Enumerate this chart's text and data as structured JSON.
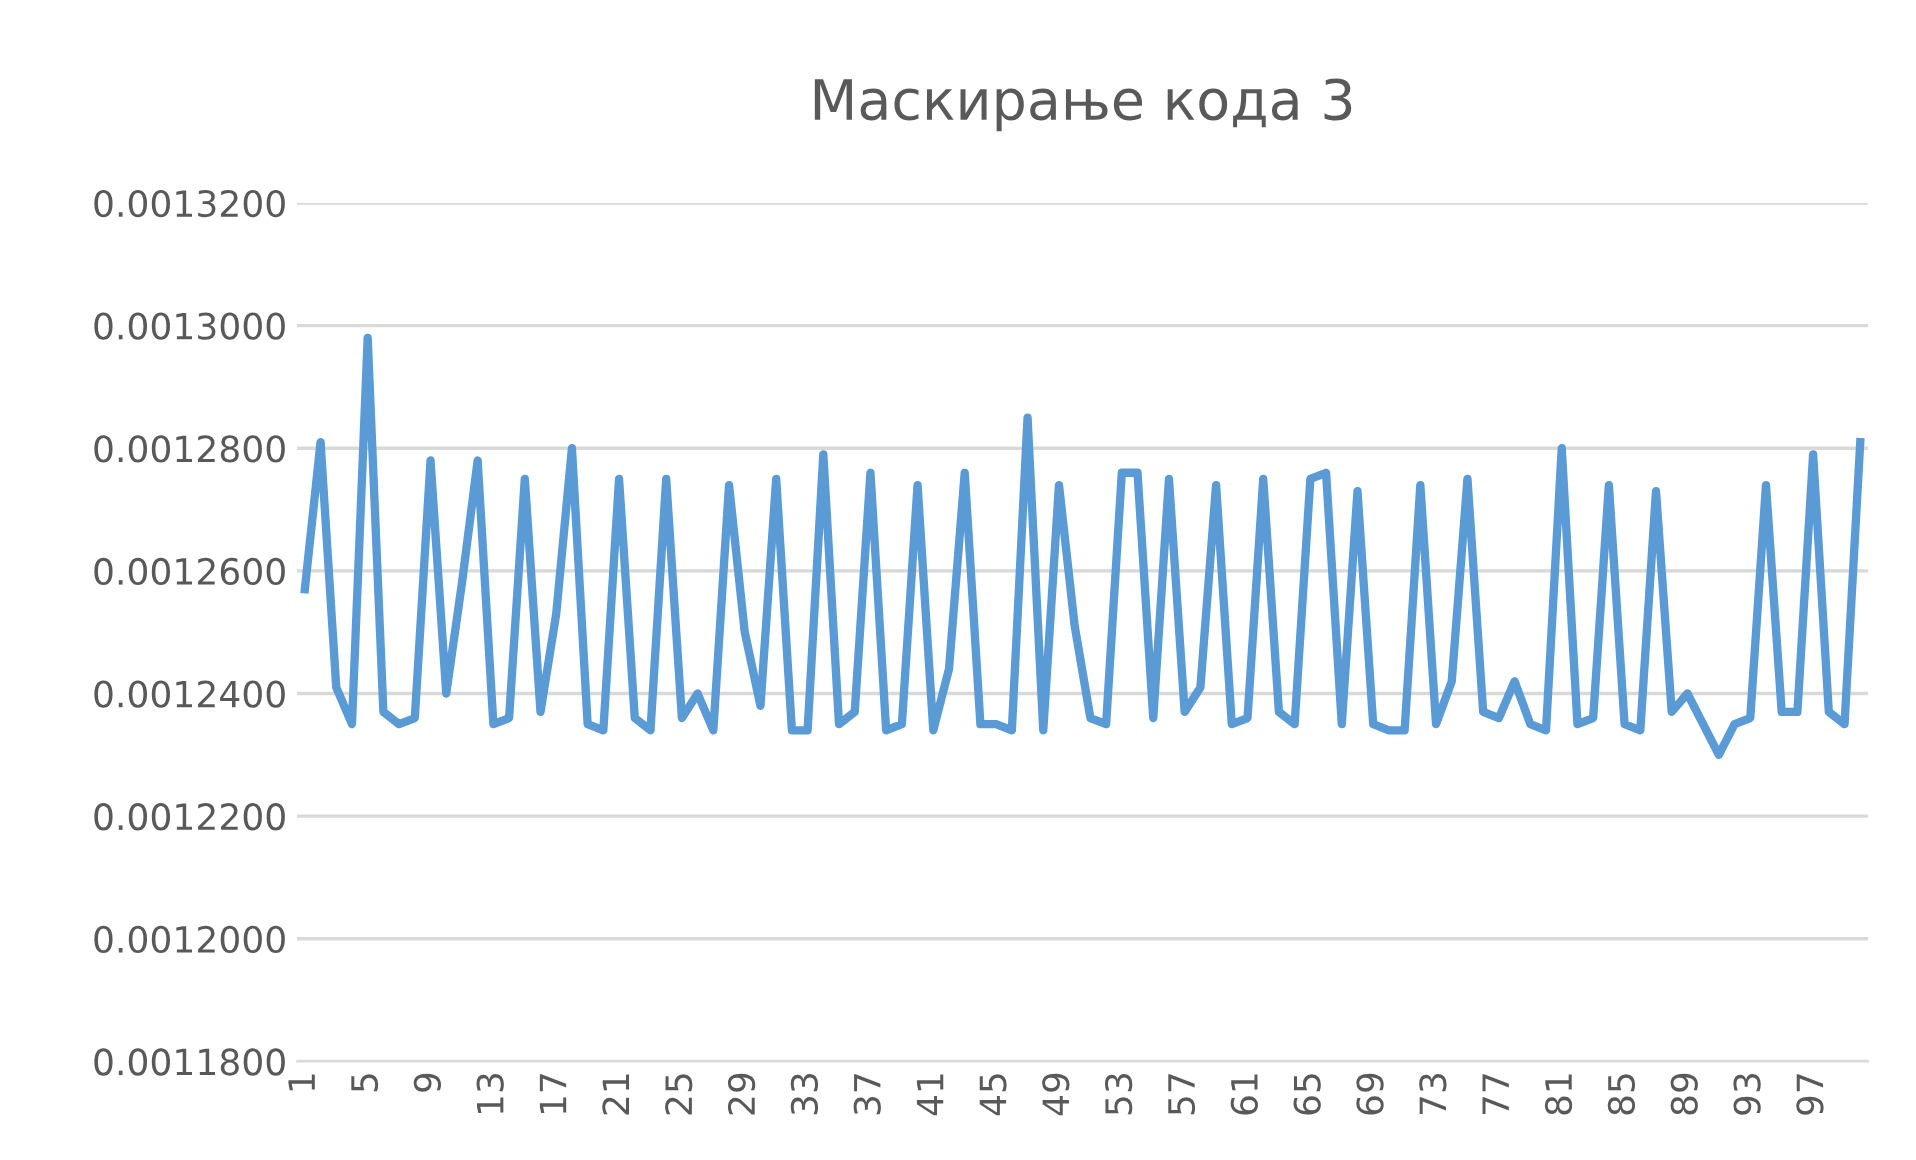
{
  "chart_data": {
    "type": "line",
    "title": "Маскирање кода 3",
    "categories": [
      "1",
      null,
      null,
      null,
      "5",
      null,
      null,
      null,
      "9",
      null,
      null,
      null,
      "13",
      null,
      null,
      null,
      "17",
      null,
      null,
      null,
      "21",
      null,
      null,
      null,
      "25",
      null,
      null,
      null,
      "29",
      null,
      null,
      null,
      "33",
      null,
      null,
      null,
      "37",
      null,
      null,
      null,
      "41",
      null,
      null,
      null,
      "45",
      null,
      null,
      null,
      "49",
      null,
      null,
      null,
      "53",
      null,
      null,
      null,
      "57",
      null,
      null,
      null,
      "61",
      null,
      null,
      null,
      "65",
      null,
      null,
      null,
      "69",
      null,
      null,
      null,
      "73",
      null,
      null,
      null,
      "77",
      null,
      null,
      null,
      "81",
      null,
      null,
      null,
      "85",
      null,
      null,
      null,
      "89",
      null,
      null,
      null,
      "93",
      null,
      null,
      null,
      "97",
      null,
      null,
      null
    ],
    "series": [
      {
        "color": "#5b9bd5",
        "values": [
          0.001257,
          0.001281,
          0.001241,
          0.001235,
          0.001298,
          0.001237,
          0.001235,
          0.001236,
          0.001278,
          0.00124,
          0.001258,
          0.001278,
          0.001235,
          0.001236,
          0.001275,
          0.001237,
          0.001253,
          0.00128,
          0.001235,
          0.001234,
          0.001275,
          0.001236,
          0.001234,
          0.001275,
          0.001236,
          0.00124,
          0.001234,
          0.001274,
          0.00125,
          0.001238,
          0.001275,
          0.001234,
          0.001234,
          0.001279,
          0.001235,
          0.001237,
          0.001276,
          0.001234,
          0.001235,
          0.001274,
          0.001234,
          0.001244,
          0.001276,
          0.001235,
          0.001235,
          0.001234,
          0.001285,
          0.001234,
          0.001274,
          0.001251,
          0.001236,
          0.001235,
          0.001276,
          0.001276,
          0.001236,
          0.001275,
          0.001237,
          0.001241,
          0.001274,
          0.001235,
          0.001236,
          0.001275,
          0.001237,
          0.001235,
          0.001275,
          0.001276,
          0.001235,
          0.001273,
          0.001235,
          0.001234,
          0.001234,
          0.001274,
          0.001235,
          0.001242,
          0.001275,
          0.001237,
          0.001236,
          0.001242,
          0.001235,
          0.001234,
          0.00128,
          0.001235,
          0.001236,
          0.001274,
          0.001235,
          0.001234,
          0.001273,
          0.001237,
          0.00124,
          0.001235,
          0.00123,
          0.001235,
          0.001236,
          0.001274,
          0.001237,
          0.001237,
          0.001279,
          0.001237,
          0.001235,
          0.001281
        ]
      }
    ],
    "ylim": [
      0.00118,
      0.00132
    ],
    "yticks": [
      {
        "value": 0.00118,
        "label": "0.0011800"
      },
      {
        "value": 0.0012,
        "label": "0.0012000"
      },
      {
        "value": 0.00122,
        "label": "0.0012200"
      },
      {
        "value": 0.00124,
        "label": "0.0012400"
      },
      {
        "value": 0.00126,
        "label": "0.0012600"
      },
      {
        "value": 0.00128,
        "label": "0.0012800"
      },
      {
        "value": 0.0013,
        "label": "0.0013000"
      },
      {
        "value": 0.00132,
        "label": "0.0013200"
      }
    ],
    "grid": "y",
    "marker": "none",
    "line_style": "solid"
  }
}
